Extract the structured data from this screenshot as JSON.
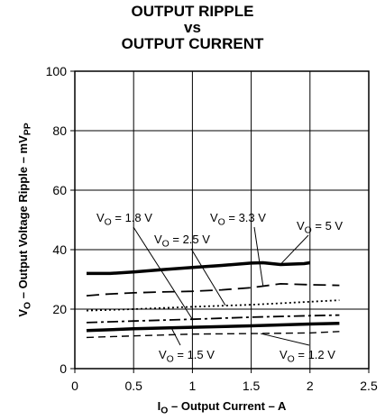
{
  "title_lines": [
    "OUTPUT RIPPLE",
    "vs",
    "OUTPUT CURRENT"
  ],
  "chart_data": {
    "type": "line",
    "title": "OUTPUT RIPPLE vs OUTPUT CURRENT",
    "xlabel": "I_O – Output Current – A",
    "ylabel": "V_O – Output Voltage Ripple – mV_PP",
    "xlim": [
      0,
      2.5
    ],
    "ylim": [
      0,
      100
    ],
    "x_ticks": [
      "0",
      "0.5",
      "1",
      "1.5",
      "2",
      "2.5"
    ],
    "y_ticks": [
      "0",
      "20",
      "40",
      "60",
      "80",
      "100"
    ],
    "grid": true,
    "series": [
      {
        "name": "VO = 5 V",
        "style": "solid-thick",
        "x": [
          0.1,
          0.3,
          0.5,
          0.75,
          1.0,
          1.25,
          1.5,
          1.6,
          1.75,
          1.95,
          2.0
        ],
        "y": [
          32,
          32,
          32.5,
          33.3,
          34,
          34.7,
          35.5,
          35.6,
          35,
          35.3,
          35.6
        ]
      },
      {
        "name": "VO = 3.3 V",
        "style": "long-dash",
        "x": [
          0.1,
          0.25,
          0.5,
          0.75,
          1.0,
          1.25,
          1.5,
          1.75,
          2.0,
          2.25
        ],
        "y": [
          24.5,
          25,
          25.5,
          25.8,
          26,
          26.5,
          27.2,
          28.5,
          28.2,
          28
        ]
      },
      {
        "name": "VO = 2.5 V",
        "style": "dotted",
        "x": [
          0.1,
          0.5,
          1.0,
          1.5,
          2.0,
          2.25
        ],
        "y": [
          19.5,
          20,
          20.8,
          21.5,
          22.5,
          23
        ]
      },
      {
        "name": "VO = 1.8 V",
        "style": "dash-dot",
        "x": [
          0.1,
          0.5,
          1.0,
          1.5,
          2.0,
          2.25
        ],
        "y": [
          15.5,
          16,
          16.6,
          17.3,
          17.8,
          18
        ]
      },
      {
        "name": "VO = 1.5 V",
        "style": "solid-thick",
        "x": [
          0.1,
          0.5,
          1.0,
          1.5,
          2.0,
          2.25
        ],
        "y": [
          12.8,
          13.4,
          13.9,
          14.4,
          15,
          15.2
        ]
      },
      {
        "name": "VO = 1.2 V",
        "style": "short-dash",
        "x": [
          0.1,
          0.5,
          1.0,
          1.5,
          2.0,
          2.25
        ],
        "y": [
          10.5,
          11,
          11.6,
          11.8,
          12,
          12.5
        ]
      }
    ],
    "annotations": [
      {
        "text": "VO = 1.8 V",
        "series": "VO = 1.8 V"
      },
      {
        "text": "VO = 2.5 V",
        "series": "VO = 2.5 V"
      },
      {
        "text": "VO = 3.3 V",
        "series": "VO = 3.3 V"
      },
      {
        "text": "VO = 5 V",
        "series": "VO = 5 V"
      },
      {
        "text": "VO = 1.5 V",
        "series": "VO = 1.5 V"
      },
      {
        "text": "VO = 1.2 V",
        "series": "VO = 1.2 V"
      }
    ]
  }
}
